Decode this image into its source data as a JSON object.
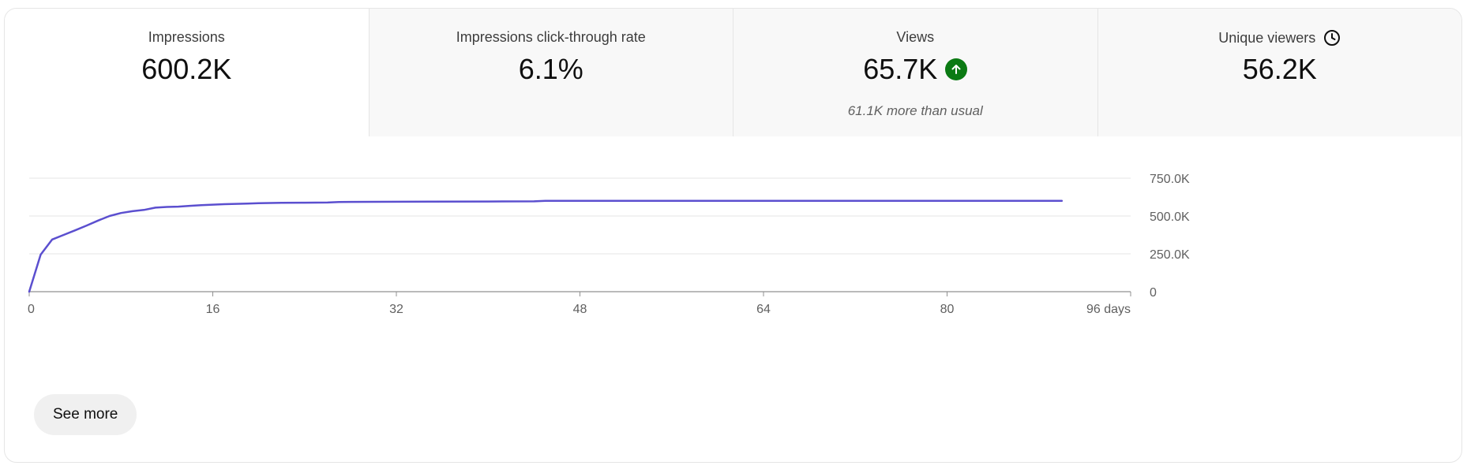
{
  "metrics": [
    {
      "label": "Impressions",
      "value": "600.2K",
      "selected": true
    },
    {
      "label": "Impressions click-through rate",
      "value": "6.1%"
    },
    {
      "label": "Views",
      "value": "65.7K",
      "note": "61.1K more than usual",
      "icon": "trend-up-icon",
      "icon_color": "#0b7a13"
    },
    {
      "label": "Unique viewers",
      "value": "56.2K",
      "icon": "clock-icon"
    }
  ],
  "chart_data": {
    "type": "line",
    "title": "",
    "xlabel": "",
    "ylabel": "",
    "x_ticks": [
      "0",
      "16",
      "32",
      "48",
      "64",
      "80",
      "96 days"
    ],
    "y_ticks": [
      "0",
      "250.0K",
      "500.0K",
      "750.0K"
    ],
    "xlim": [
      0,
      96
    ],
    "ylim": [
      0,
      750000
    ],
    "grid": true,
    "line_color": "#5b4fcf",
    "series": [
      {
        "x": [
          0,
          1,
          2,
          3,
          4,
          5,
          6,
          7,
          8,
          9,
          10,
          11,
          12,
          13,
          14,
          15,
          16,
          17,
          18,
          19,
          20,
          22,
          24,
          26,
          27,
          28,
          30,
          35,
          40,
          44,
          45,
          50,
          60,
          70,
          80,
          90
        ],
        "values": [
          0,
          245000,
          345000,
          375000,
          405000,
          437000,
          470000,
          500000,
          520000,
          532000,
          540000,
          555000,
          560000,
          562000,
          567000,
          572000,
          575000,
          578000,
          580000,
          582000,
          585000,
          587000,
          588000,
          589000,
          592000,
          593000,
          594000,
          595000,
          596000,
          597000,
          600000,
          600000,
          600000,
          600000,
          600000,
          600200
        ]
      }
    ]
  },
  "see_more_label": "See more"
}
